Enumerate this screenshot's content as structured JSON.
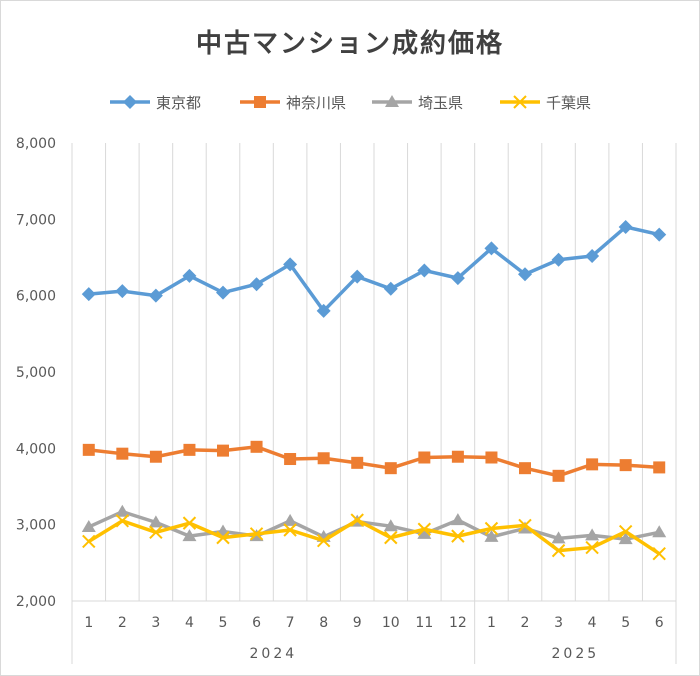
{
  "chart_data": {
    "type": "line",
    "title": "中古マンション成約価格",
    "categories": [
      "1",
      "2",
      "3",
      "4",
      "5",
      "6",
      "7",
      "8",
      "9",
      "10",
      "11",
      "12",
      "1",
      "2",
      "3",
      "4",
      "5",
      "6"
    ],
    "category_groups": [
      {
        "label": "2024",
        "count": 12
      },
      {
        "label": "2025",
        "count": 6
      }
    ],
    "ylim": [
      2000,
      8000
    ],
    "yticks": [
      "2,000",
      "3,000",
      "4,000",
      "5,000",
      "6,000",
      "7,000",
      "8,000"
    ],
    "ytick_values": [
      2000,
      3000,
      4000,
      5000,
      6000,
      7000,
      8000
    ],
    "grid": "vertical",
    "legend": "top",
    "series": [
      {
        "name": "東京都",
        "color": "#5B9BD5",
        "marker": "diamond",
        "values": [
          6020,
          6060,
          6000,
          6260,
          6040,
          6150,
          6410,
          5800,
          6250,
          6090,
          6330,
          6230,
          6620,
          6280,
          6470,
          6520,
          6900,
          6800
        ]
      },
      {
        "name": "神奈川県",
        "color": "#ED7D31",
        "marker": "square",
        "values": [
          3980,
          3930,
          3890,
          3980,
          3970,
          4020,
          3860,
          3870,
          3810,
          3740,
          3880,
          3890,
          3880,
          3740,
          3640,
          3790,
          3780,
          3750
        ]
      },
      {
        "name": "埼玉県",
        "color": "#A5A5A5",
        "marker": "triangle",
        "values": [
          2970,
          3170,
          3030,
          2850,
          2910,
          2850,
          3050,
          2840,
          3040,
          2980,
          2880,
          3060,
          2840,
          2950,
          2820,
          2860,
          2810,
          2900
        ]
      },
      {
        "name": "千葉県",
        "color": "#FFC000",
        "marker": "x",
        "values": [
          2780,
          3050,
          2900,
          3020,
          2830,
          2880,
          2930,
          2790,
          3060,
          2830,
          2940,
          2850,
          2950,
          2990,
          2660,
          2700,
          2910,
          2620
        ]
      }
    ]
  }
}
